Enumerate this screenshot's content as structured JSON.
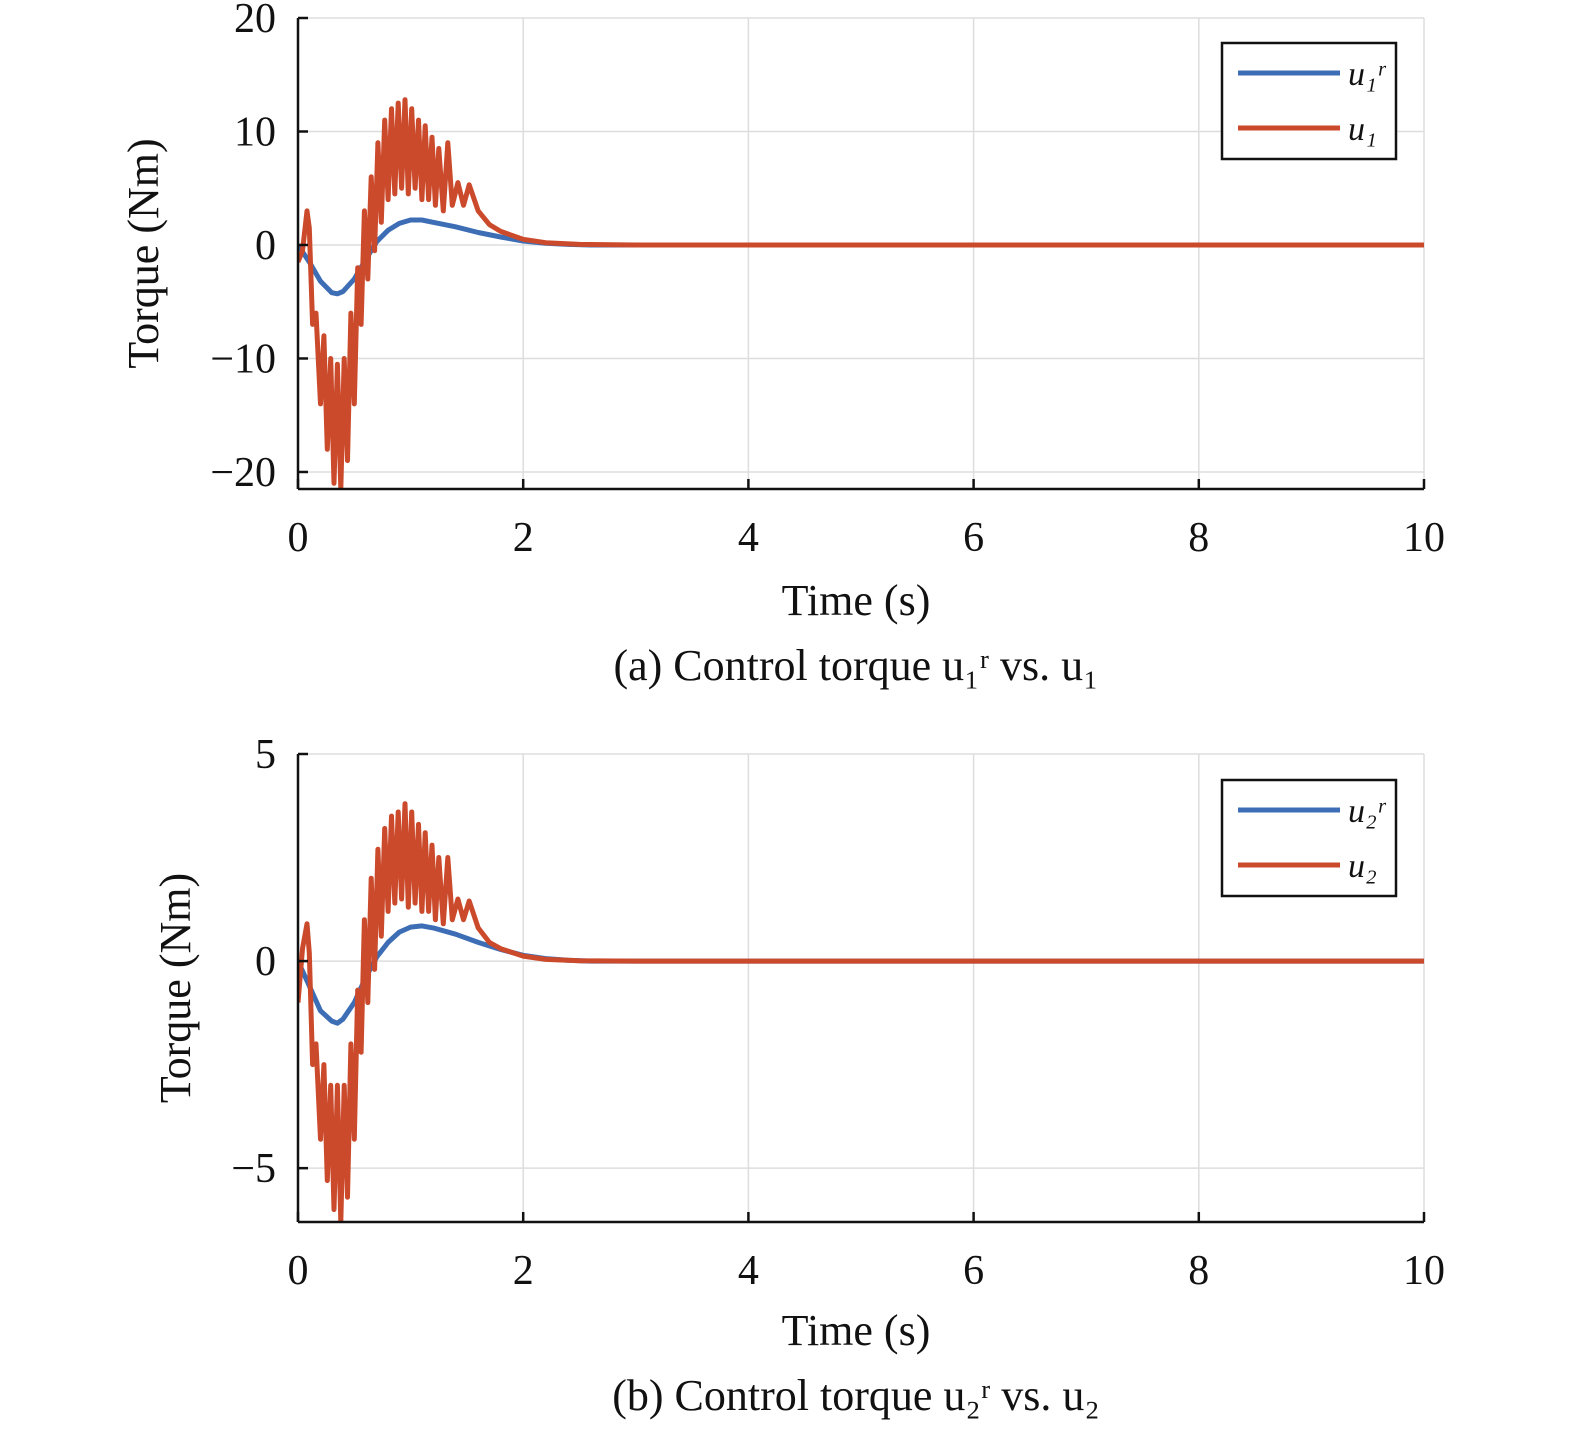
{
  "colors": {
    "reference": "#3d6db5",
    "actual": "#cc4a2c"
  },
  "chart_data": [
    {
      "type": "line",
      "caption": "(a) Control torque u₁ʳ vs. u₁",
      "xlabel": "Time (s)",
      "ylabel": "Torque (Nm)",
      "xlim": [
        0,
        10
      ],
      "ylim": [
        -21.5,
        20
      ],
      "xticks": [
        0,
        2,
        4,
        6,
        8,
        10
      ],
      "yticks": [
        -20,
        -10,
        0,
        10,
        20
      ],
      "xtick_labels": [
        "0",
        "2",
        "4",
        "6",
        "8",
        "10"
      ],
      "ytick_labels": [
        "−20",
        "−10",
        "0",
        "10",
        "20"
      ],
      "grid": true,
      "legend_position": "top-right",
      "series": [
        {
          "name": "u₁ʳ",
          "color": "#3d6db5",
          "x": [
            0,
            0.1,
            0.2,
            0.3,
            0.35,
            0.4,
            0.5,
            0.6,
            0.7,
            0.8,
            0.9,
            1.0,
            1.1,
            1.2,
            1.4,
            1.6,
            1.8,
            2.0,
            2.2,
            2.4,
            2.6,
            3.0,
            10.0
          ],
          "y": [
            0,
            -1.5,
            -3.2,
            -4.2,
            -4.3,
            -4.1,
            -3.0,
            -1.3,
            0.3,
            1.3,
            1.9,
            2.2,
            2.2,
            2.0,
            1.6,
            1.1,
            0.7,
            0.35,
            0.15,
            0.05,
            0,
            0,
            0
          ]
        },
        {
          "name": "u₁",
          "color": "#cc4a2c",
          "x": [
            0,
            0.04,
            0.08,
            0.1,
            0.13,
            0.16,
            0.2,
            0.23,
            0.26,
            0.29,
            0.32,
            0.35,
            0.38,
            0.41,
            0.44,
            0.47,
            0.5,
            0.53,
            0.56,
            0.59,
            0.62,
            0.65,
            0.68,
            0.71,
            0.74,
            0.77,
            0.8,
            0.83,
            0.86,
            0.89,
            0.92,
            0.95,
            0.98,
            1.01,
            1.04,
            1.07,
            1.1,
            1.13,
            1.16,
            1.19,
            1.22,
            1.25,
            1.29,
            1.33,
            1.37,
            1.42,
            1.47,
            1.52,
            1.6,
            1.7,
            1.8,
            2.0,
            2.2,
            2.5,
            3.0,
            10.0
          ],
          "y": [
            -1.5,
            -0.5,
            3.0,
            1.5,
            -7.0,
            -6.0,
            -14.0,
            -8.0,
            -18.0,
            -10.0,
            -21.0,
            -10.5,
            -21.5,
            -10.0,
            -19.0,
            -6.0,
            -14.0,
            -2.0,
            -7.0,
            3.0,
            -3.0,
            6.0,
            -0.5,
            9.0,
            2.0,
            11.0,
            4.0,
            12.0,
            4.5,
            12.5,
            5.0,
            12.8,
            4.5,
            12.0,
            5.0,
            11.0,
            4.0,
            10.5,
            4.0,
            9.5,
            3.5,
            8.5,
            3.0,
            9.0,
            3.5,
            5.5,
            3.5,
            5.3,
            3.0,
            1.8,
            1.2,
            0.5,
            0.2,
            0.05,
            0,
            0
          ]
        }
      ]
    },
    {
      "type": "line",
      "caption": "(b) Control torque u₂ʳ vs. u₂",
      "xlabel": "Time (s)",
      "ylabel": "Torque (Nm)",
      "xlim": [
        0,
        10
      ],
      "ylim": [
        -6.3,
        5
      ],
      "xticks": [
        0,
        2,
        4,
        6,
        8,
        10
      ],
      "yticks": [
        -5,
        0,
        5
      ],
      "xtick_labels": [
        "0",
        "2",
        "4",
        "6",
        "8",
        "10"
      ],
      "ytick_labels": [
        "−5",
        "0",
        "5"
      ],
      "grid": true,
      "legend_position": "top-right",
      "series": [
        {
          "name": "u₂ʳ",
          "color": "#3d6db5",
          "x": [
            0,
            0.1,
            0.2,
            0.3,
            0.35,
            0.4,
            0.5,
            0.6,
            0.7,
            0.8,
            0.9,
            1.0,
            1.1,
            1.2,
            1.4,
            1.6,
            1.8,
            2.0,
            2.2,
            2.4,
            2.6,
            3.0,
            10.0
          ],
          "y": [
            0,
            -0.6,
            -1.2,
            -1.45,
            -1.5,
            -1.4,
            -1.0,
            -0.4,
            0.1,
            0.45,
            0.7,
            0.82,
            0.85,
            0.8,
            0.65,
            0.45,
            0.28,
            0.14,
            0.06,
            0.02,
            0,
            0,
            0
          ]
        },
        {
          "name": "u₂",
          "color": "#cc4a2c",
          "x": [
            0,
            0.04,
            0.08,
            0.1,
            0.13,
            0.16,
            0.2,
            0.23,
            0.26,
            0.29,
            0.32,
            0.35,
            0.38,
            0.41,
            0.44,
            0.47,
            0.5,
            0.53,
            0.56,
            0.59,
            0.62,
            0.65,
            0.68,
            0.71,
            0.74,
            0.77,
            0.8,
            0.83,
            0.86,
            0.89,
            0.92,
            0.95,
            0.98,
            1.01,
            1.04,
            1.07,
            1.1,
            1.13,
            1.16,
            1.19,
            1.22,
            1.25,
            1.29,
            1.33,
            1.37,
            1.42,
            1.47,
            1.52,
            1.6,
            1.7,
            1.8,
            2.0,
            2.2,
            2.5,
            3.0,
            10.0
          ],
          "y": [
            -1.0,
            0.3,
            0.9,
            0.2,
            -2.5,
            -2.0,
            -4.3,
            -2.5,
            -5.3,
            -3.0,
            -6.0,
            -3.0,
            -6.3,
            -3.0,
            -5.7,
            -2.0,
            -4.3,
            -0.7,
            -2.2,
            1.0,
            -1.0,
            2.0,
            -0.2,
            2.7,
            0.6,
            3.2,
            1.2,
            3.5,
            1.4,
            3.6,
            1.5,
            3.8,
            1.3,
            3.6,
            1.4,
            3.3,
            1.2,
            3.1,
            1.2,
            2.8,
            1.0,
            2.5,
            0.9,
            2.5,
            1.0,
            1.5,
            1.0,
            1.45,
            0.8,
            0.45,
            0.3,
            0.12,
            0.04,
            0.01,
            0,
            0
          ]
        }
      ]
    }
  ]
}
